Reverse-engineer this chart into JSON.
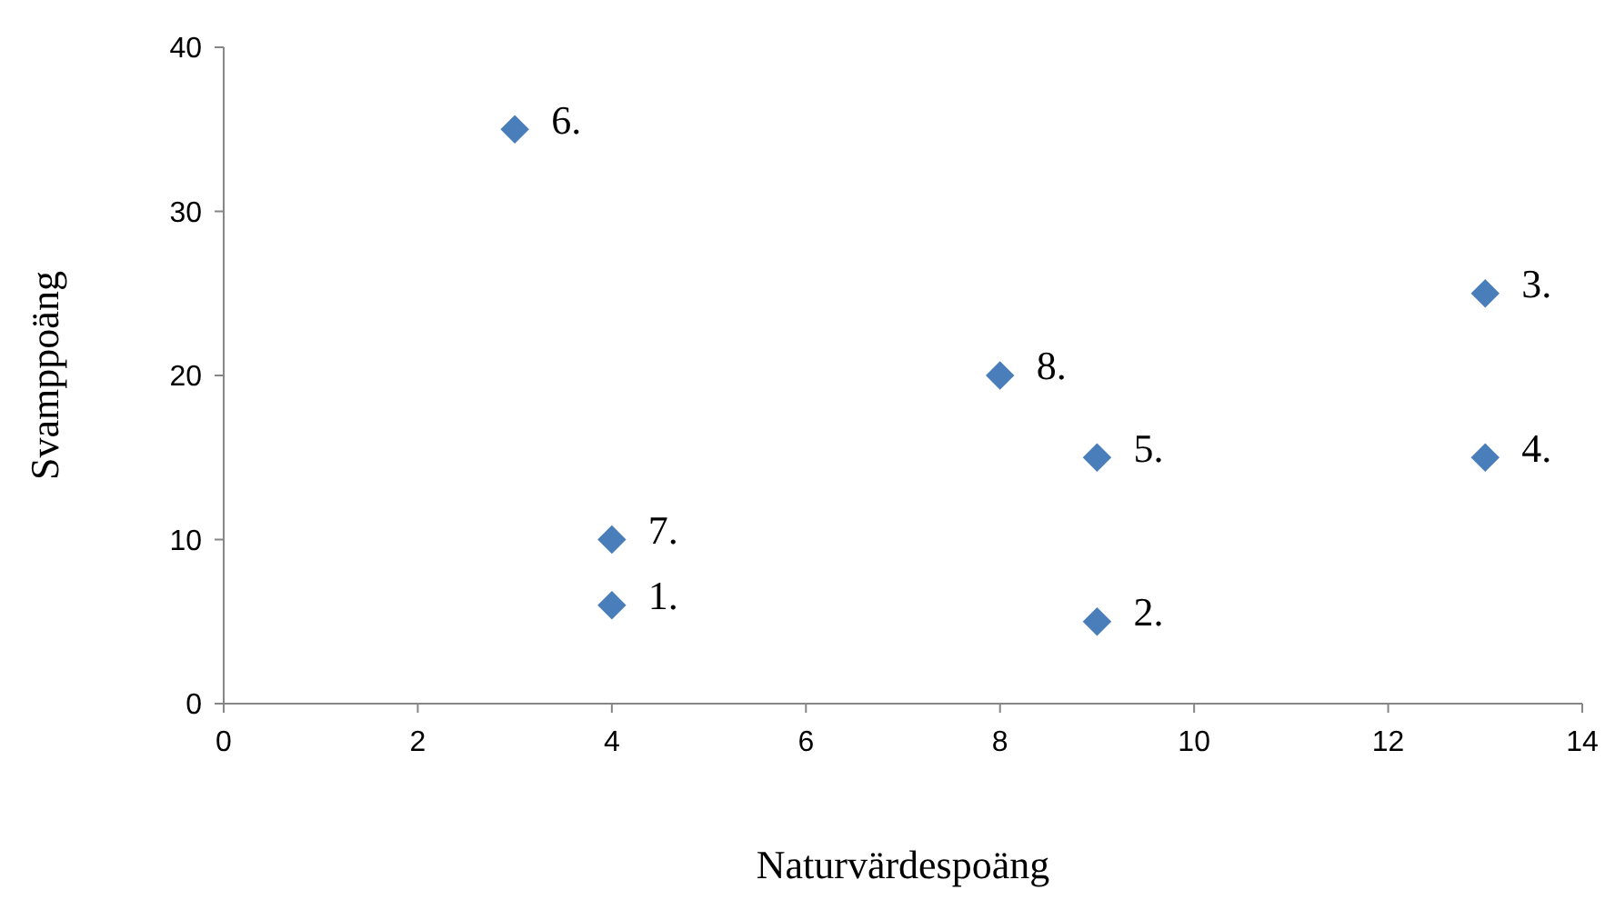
{
  "chart_data": {
    "type": "scatter",
    "xlabel": "Naturvärdespoäng",
    "ylabel": "Svamppoäng",
    "x": [
      4,
      9,
      13,
      13,
      9,
      3,
      4,
      8
    ],
    "values": [
      6,
      5,
      25,
      15,
      15,
      35,
      10,
      20
    ],
    "color": "#4a7ebb",
    "marker": "diamond",
    "grid": false,
    "xlim": [
      0,
      14
    ],
    "xticks": [
      0,
      2,
      4,
      6,
      8,
      10,
      12,
      14
    ],
    "ylim": [
      0,
      40
    ],
    "yticks": [
      0,
      10,
      20,
      30,
      40
    ],
    "annotations": [
      {
        "text": "1.",
        "x": 4,
        "y": 6
      },
      {
        "text": "2.",
        "x": 9,
        "y": 5
      },
      {
        "text": "3.",
        "x": 13,
        "y": 25
      },
      {
        "text": "4.",
        "x": 13,
        "y": 15
      },
      {
        "text": "5.",
        "x": 9,
        "y": 15
      },
      {
        "text": "6.",
        "x": 3,
        "y": 35
      },
      {
        "text": "7.",
        "x": 4,
        "y": 10
      },
      {
        "text": "8.",
        "x": 8,
        "y": 20
      }
    ]
  }
}
